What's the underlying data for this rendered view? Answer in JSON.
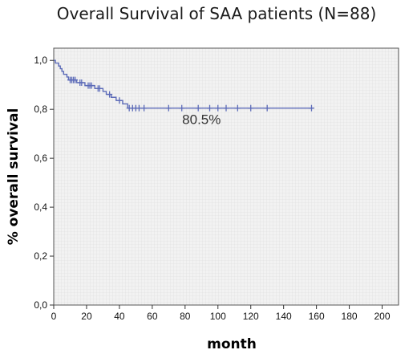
{
  "chart_data": {
    "type": "line",
    "title": "Overall Survival of SAA patients (N=88)",
    "xlabel": "month",
    "ylabel": "% overall survival",
    "xlim": [
      0,
      210
    ],
    "ylim": [
      0,
      1.05
    ],
    "xticks": [
      0,
      20,
      40,
      60,
      80,
      100,
      120,
      140,
      160,
      180,
      200
    ],
    "yticks": [
      "0,0",
      "0,2",
      "0,4",
      "0,6",
      "0,8",
      "1,0"
    ],
    "grid": true,
    "legend": "none",
    "series": [
      {
        "line_color": "#5c6bb8",
        "step_points": [
          [
            0,
            1.0
          ],
          [
            1,
            0.989
          ],
          [
            3,
            0.977
          ],
          [
            4,
            0.966
          ],
          [
            5,
            0.955
          ],
          [
            6,
            0.943
          ],
          [
            8,
            0.932
          ],
          [
            9,
            0.92
          ],
          [
            14,
            0.909
          ],
          [
            19,
            0.897
          ],
          [
            25,
            0.885
          ],
          [
            30,
            0.873
          ],
          [
            32,
            0.861
          ],
          [
            35,
            0.849
          ],
          [
            38,
            0.836
          ],
          [
            42,
            0.822
          ],
          [
            45,
            0.805
          ],
          [
            158,
            0.805
          ]
        ],
        "censor_points": [
          [
            10,
            0.92
          ],
          [
            11,
            0.92
          ],
          [
            12,
            0.92
          ],
          [
            13,
            0.92
          ],
          [
            16,
            0.909
          ],
          [
            17,
            0.909
          ],
          [
            21,
            0.897
          ],
          [
            22,
            0.897
          ],
          [
            23,
            0.897
          ],
          [
            27,
            0.885
          ],
          [
            28,
            0.885
          ],
          [
            34,
            0.861
          ],
          [
            40,
            0.836
          ],
          [
            46,
            0.805
          ],
          [
            48,
            0.805
          ],
          [
            50,
            0.805
          ],
          [
            52,
            0.805
          ],
          [
            55,
            0.805
          ],
          [
            70,
            0.805
          ],
          [
            78,
            0.805
          ],
          [
            88,
            0.805
          ],
          [
            95,
            0.805
          ],
          [
            100,
            0.805
          ],
          [
            105,
            0.805
          ],
          [
            112,
            0.805
          ],
          [
            120,
            0.805
          ],
          [
            130,
            0.805
          ],
          [
            157,
            0.805
          ]
        ]
      }
    ],
    "annotation": {
      "text": "80.5%",
      "x": 90,
      "y": 0.74
    }
  }
}
